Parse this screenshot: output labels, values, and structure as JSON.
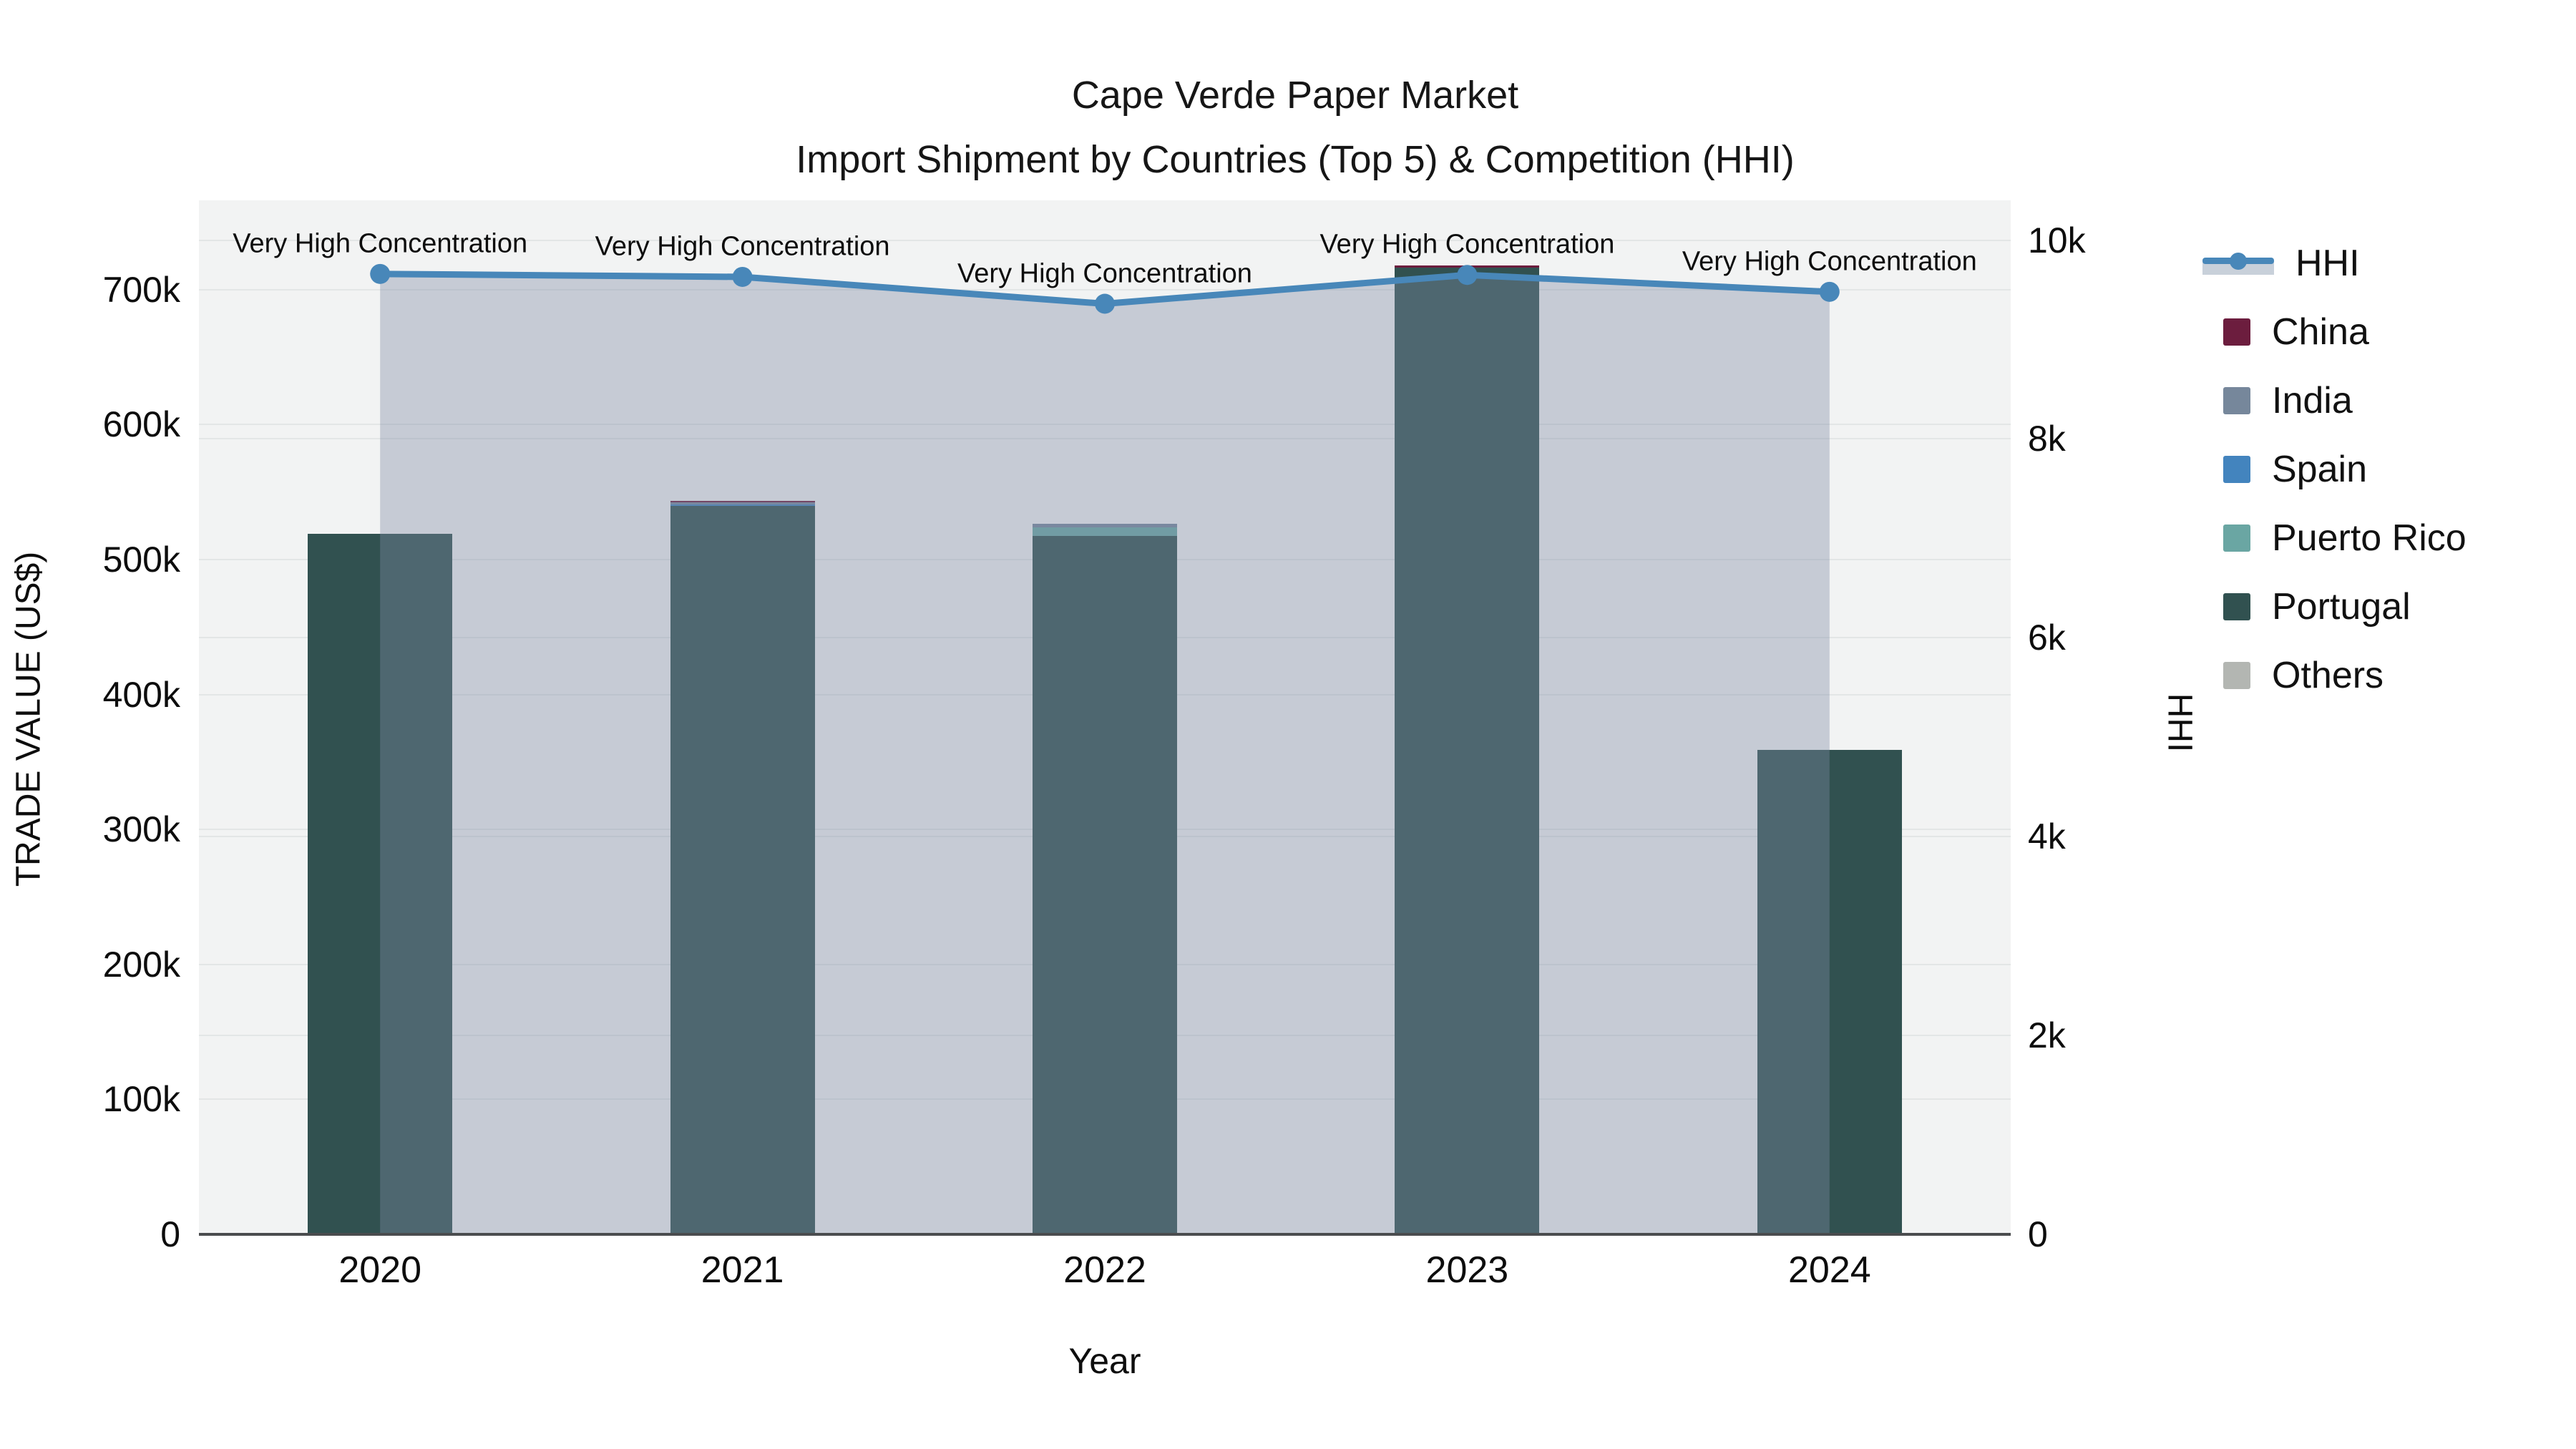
{
  "title": {
    "line1": "Cape Verde Paper Market",
    "line2": "Import Shipment by Countries (Top 5) & Competition (HHI)"
  },
  "axes": {
    "x": {
      "title": "Year",
      "tick_labels": [
        "2020",
        "2021",
        "2022",
        "2023",
        "2024"
      ]
    },
    "left": {
      "title": "TRADE VALUE (US$)",
      "tick_labels": [
        "0",
        "100k",
        "200k",
        "300k",
        "400k",
        "500k",
        "600k",
        "700k"
      ],
      "tick_values": [
        0,
        100000,
        200000,
        300000,
        400000,
        500000,
        600000,
        700000
      ],
      "max": 766200
    },
    "right": {
      "title": "HHI",
      "tick_labels": [
        "0",
        "2k",
        "4k",
        "6k",
        "8k",
        "10k"
      ],
      "tick_values": [
        0,
        2000,
        4000,
        6000,
        8000,
        10000
      ],
      "max": 10400
    }
  },
  "legend": {
    "items": [
      {
        "label": "HHI",
        "type": "line",
        "color": "#4887B9"
      },
      {
        "label": "China",
        "type": "box",
        "color": "#6C1D3E"
      },
      {
        "label": "India",
        "type": "box",
        "color": "#76879B"
      },
      {
        "label": "Spain",
        "type": "box",
        "color": "#4384BE"
      },
      {
        "label": "Puerto Rico",
        "type": "box",
        "color": "#6AA6A3"
      },
      {
        "label": "Portugal",
        "type": "box",
        "color": "#315150"
      },
      {
        "label": "Others",
        "type": "box",
        "color": "#B3B6B2"
      }
    ]
  },
  "chart_data": {
    "type": "bar+line",
    "title": "Cape Verde Paper Market — Import Shipment by Countries (Top 5) & Competition (HHI)",
    "xlabel": "Year",
    "ylabel_left": "TRADE VALUE (US$)",
    "ylabel_right": "HHI",
    "categories": [
      "2020",
      "2021",
      "2022",
      "2023",
      "2024"
    ],
    "bar_unit": "US$",
    "series": [
      {
        "name": "China",
        "color": "#6C1D3E",
        "values": [
          0,
          1200,
          0,
          1200,
          0
        ]
      },
      {
        "name": "India",
        "color": "#76879B",
        "values": [
          0,
          1500,
          2700,
          0,
          0
        ]
      },
      {
        "name": "Spain",
        "color": "#4384BE",
        "values": [
          0,
          800,
          0,
          0,
          0
        ]
      },
      {
        "name": "Puerto Rico",
        "color": "#6AA6A3",
        "values": [
          0,
          0,
          6400,
          0,
          0
        ]
      },
      {
        "name": "Portugal",
        "color": "#315150",
        "values": [
          519000,
          540000,
          517500,
          716500,
          359000
        ]
      },
      {
        "name": "Others",
        "color": "#B3B6B2",
        "values": [
          0,
          0,
          0,
          0,
          0
        ]
      }
    ],
    "stack_order_bottom_to_top": [
      "Others",
      "Portugal",
      "Puerto Rico",
      "Spain",
      "India",
      "China"
    ],
    "bar_totals": [
      519000,
      543500,
      526600,
      717700,
      359000
    ],
    "hhi_line": {
      "name": "HHI",
      "color": "#4887B9",
      "fill_color": "rgba(125,139,165,0.38)",
      "values": [
        9660,
        9630,
        9360,
        9650,
        9480
      ]
    },
    "annotations": [
      {
        "x": "2020",
        "text": "Very High Concentration"
      },
      {
        "x": "2021",
        "text": "Very High Concentration"
      },
      {
        "x": "2022",
        "text": "Very High Concentration"
      },
      {
        "x": "2023",
        "text": "Very High Concentration"
      },
      {
        "x": "2024",
        "text": "Very High Concentration"
      }
    ],
    "ylim_left": [
      0,
      766200
    ],
    "ylim_right": [
      0,
      10400
    ],
    "grid": true,
    "legend_position": "right",
    "plot_bg": "#f2f3f3"
  }
}
